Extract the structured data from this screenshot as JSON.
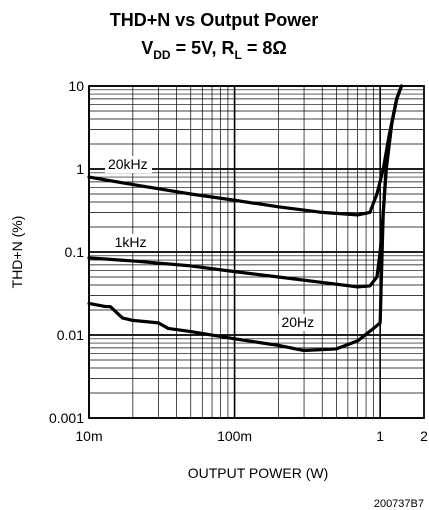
{
  "chart_data": {
    "type": "line",
    "title": "THD+N vs Output Power",
    "subtitle_parts": {
      "vdd_main": "V",
      "vdd_sub": "DD",
      "vdd_val": " = 5V, R",
      "rl_sub": "L",
      "rl_val": " = 8Ω"
    },
    "xlabel": "OUTPUT POWER (W)",
    "ylabel": "THD+N (%)",
    "x_scale": "log",
    "y_scale": "log",
    "xlim": [
      0.01,
      2
    ],
    "ylim": [
      0.001,
      10
    ],
    "x_ticks": [
      {
        "value": 0.01,
        "label": "10m"
      },
      {
        "value": 0.1,
        "label": "100m"
      },
      {
        "value": 1,
        "label": "1"
      },
      {
        "value": 2,
        "label": "2"
      }
    ],
    "y_ticks": [
      {
        "value": 0.001,
        "label": "0.001"
      },
      {
        "value": 0.01,
        "label": "0.01"
      },
      {
        "value": 0.1,
        "label": "0.1"
      },
      {
        "value": 1,
        "label": "1"
      },
      {
        "value": 10,
        "label": "10"
      }
    ],
    "grid": true,
    "series": [
      {
        "name": "20kHz",
        "x": [
          0.01,
          0.02,
          0.05,
          0.1,
          0.2,
          0.4,
          0.7,
          0.85,
          0.95,
          1.05,
          1.15,
          1.3,
          1.4
        ],
        "y": [
          0.8,
          0.65,
          0.5,
          0.42,
          0.35,
          0.3,
          0.28,
          0.3,
          0.5,
          1.0,
          2.5,
          7,
          10
        ]
      },
      {
        "name": "1kHz",
        "x": [
          0.01,
          0.02,
          0.05,
          0.1,
          0.2,
          0.4,
          0.7,
          0.85,
          0.95,
          1.0,
          1.05,
          1.1,
          1.2,
          1.3,
          1.4
        ],
        "y": [
          0.085,
          0.078,
          0.068,
          0.058,
          0.05,
          0.043,
          0.038,
          0.039,
          0.05,
          0.1,
          0.3,
          1.0,
          3.5,
          7,
          10
        ]
      },
      {
        "name": "20Hz",
        "x": [
          0.01,
          0.013,
          0.014,
          0.017,
          0.02,
          0.03,
          0.035,
          0.05,
          0.1,
          0.2,
          0.3,
          0.5,
          0.7,
          0.9,
          1.0,
          1.02,
          1.05,
          1.1,
          1.2,
          1.3,
          1.4
        ],
        "y": [
          0.024,
          0.022,
          0.022,
          0.016,
          0.015,
          0.014,
          0.012,
          0.011,
          0.009,
          0.0075,
          0.0065,
          0.0068,
          0.0085,
          0.012,
          0.014,
          0.05,
          0.3,
          1.0,
          3.5,
          7,
          10
        ]
      }
    ],
    "annotations": [
      {
        "text": "20kHz",
        "series": "20kHz"
      },
      {
        "text": "1kHz",
        "series": "1kHz"
      },
      {
        "text": "20Hz",
        "series": "20Hz"
      }
    ],
    "footnote": "200737B7"
  }
}
